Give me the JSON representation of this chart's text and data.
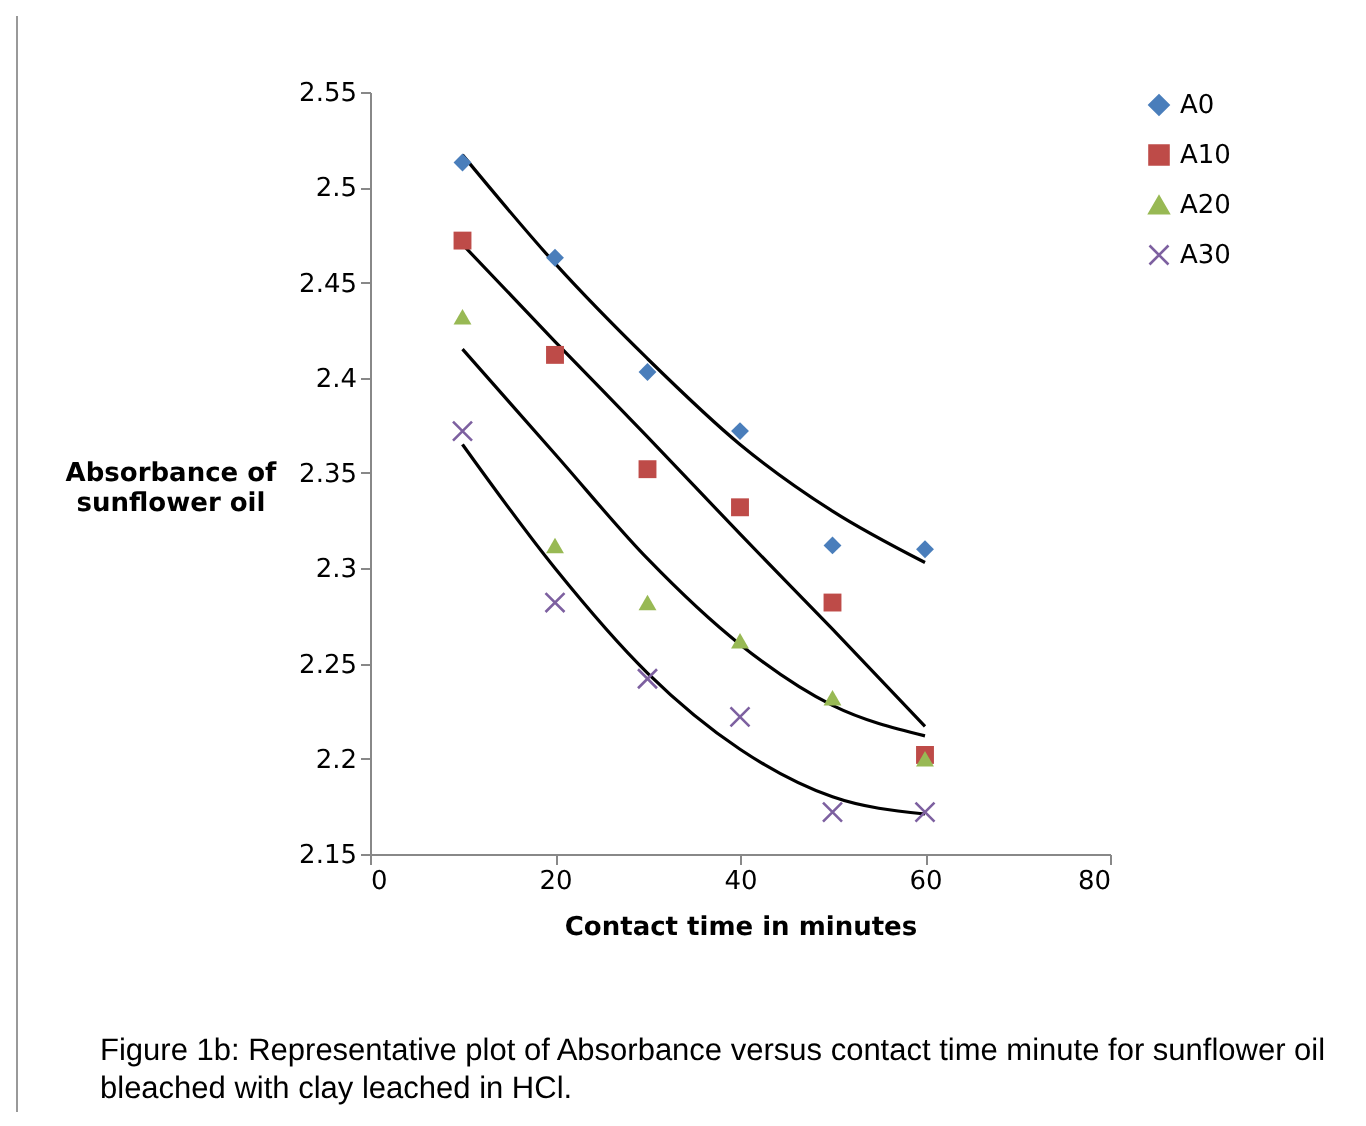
{
  "chart_data": {
    "type": "scatter",
    "xlabel": "Contact time in minutes",
    "ylabel": "Absorbance of sunflower oil",
    "xlim": [
      0,
      80
    ],
    "xticks": [
      0,
      20,
      40,
      60,
      80
    ],
    "ylim": [
      2.15,
      2.55
    ],
    "yticks": [
      2.15,
      2.2,
      2.25,
      2.3,
      2.35,
      2.4,
      2.45,
      2.5,
      2.55
    ],
    "grid": false,
    "legend": "right",
    "x": [
      10,
      20,
      30,
      40,
      50,
      60
    ],
    "series": [
      {
        "name": "A0",
        "color": "#4a7ebb",
        "marker": "diamond",
        "values": [
          2.513,
          2.463,
          2.403,
          2.372,
          2.312,
          2.31
        ]
      },
      {
        "name": "A10",
        "color": "#be4b48",
        "marker": "square",
        "values": [
          2.472,
          2.412,
          2.352,
          2.332,
          2.282,
          2.202
        ]
      },
      {
        "name": "A20",
        "color": "#98b954",
        "marker": "triangle",
        "values": [
          2.432,
          2.312,
          2.282,
          2.262,
          2.232,
          2.2
        ]
      },
      {
        "name": "A30",
        "color": "#7d60a0",
        "marker": "cross",
        "values": [
          2.372,
          2.282,
          2.242,
          2.222,
          2.172,
          2.172
        ]
      },
      {
        "type": "line",
        "color": "#000000",
        "marker": "none",
        "values": [
          2.517,
          2.46,
          2.41,
          2.365,
          2.33,
          2.303
        ]
      },
      {
        "type": "line",
        "color": "#000000",
        "marker": "none",
        "values": [
          2.47,
          2.419,
          2.369,
          2.318,
          2.268,
          2.217
        ]
      },
      {
        "type": "line",
        "color": "#000000",
        "marker": "none",
        "values": [
          2.415,
          2.36,
          2.305,
          2.26,
          2.228,
          2.212
        ]
      },
      {
        "type": "line",
        "color": "#000000",
        "marker": "none",
        "values": [
          2.365,
          2.3,
          2.245,
          2.205,
          2.18,
          2.171
        ]
      }
    ],
    "annotations": [
      "Figure 1b: Representative plot of Absorbance versus contact time minute for sunflower oil bleached with clay leached in HCl."
    ]
  }
}
